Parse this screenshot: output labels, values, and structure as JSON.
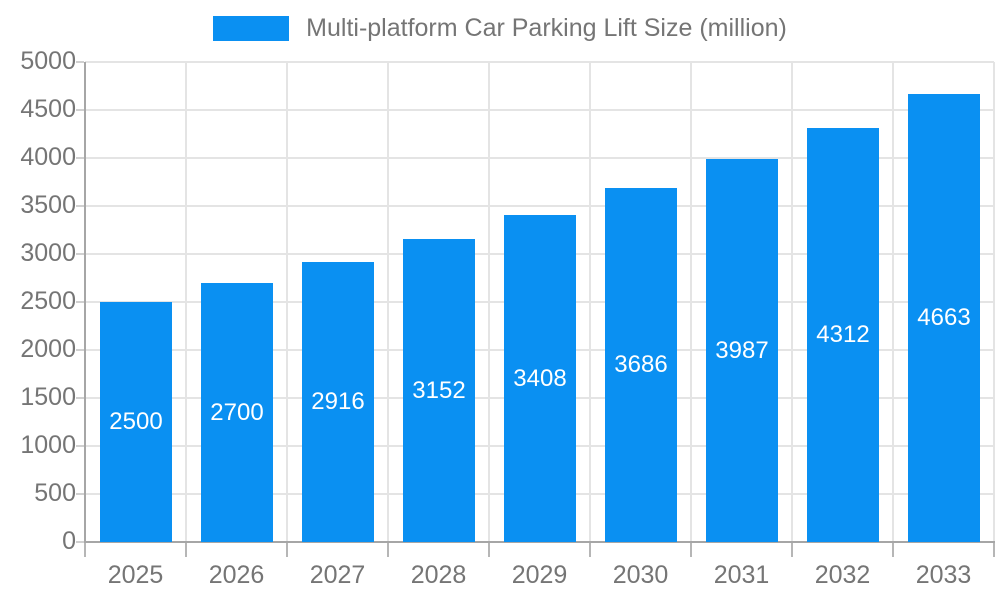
{
  "chart_data": {
    "type": "bar",
    "title": "Multi-platform Car Parking Lift Size (million)",
    "categories": [
      "2025",
      "2026",
      "2027",
      "2028",
      "2029",
      "2030",
      "2031",
      "2032",
      "2033"
    ],
    "series": [
      {
        "name": "Multi-platform Car Parking Lift Size (million)",
        "values": [
          2500,
          2700,
          2916,
          3152,
          3408,
          3686,
          3987,
          4312,
          4663
        ]
      }
    ],
    "value_labels_shown": true,
    "xlabel": "",
    "ylabel": "",
    "ylim": [
      0,
      5000
    ],
    "ytick_step": 500,
    "yticks": [
      0,
      500,
      1000,
      1500,
      2000,
      2500,
      3000,
      3500,
      4000,
      4500,
      5000
    ],
    "grid": true,
    "legend_position": "top",
    "colors": {
      "bar": "#0A90F2",
      "value_label": "#FFFFFF",
      "axis_text": "#757575",
      "grid_line": "#E4E4E4",
      "axis_line": "#A6A6A6",
      "tick_y": "#D0D0D0",
      "tick_x": "#B6B6B6",
      "background": "#FFFFFF"
    }
  }
}
